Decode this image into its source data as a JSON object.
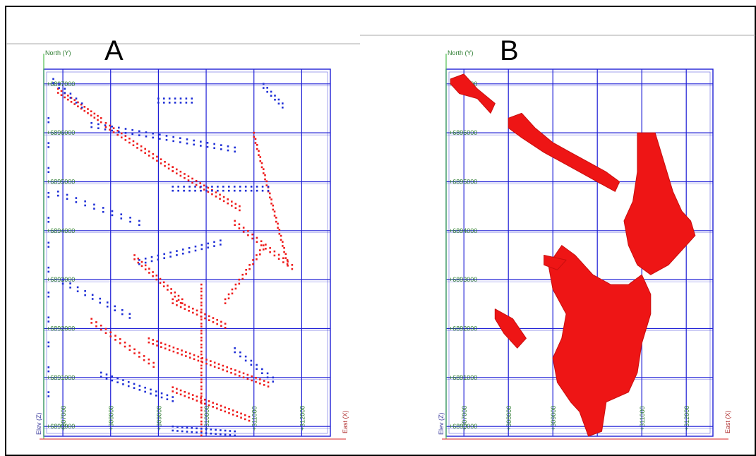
{
  "panels": {
    "a": {
      "letter": "A"
    },
    "b": {
      "letter": "B"
    }
  },
  "colors": {
    "grid": "#1f1fd6",
    "north_axis": "#4fbf4f",
    "east_axis": "#e05050",
    "tick_label": "#2e7d32",
    "red_points": "#ee1c1c",
    "blue_points": "#1f2fd6",
    "body_fill": "#ee1515"
  },
  "chart_data": [
    {
      "panel": "A",
      "type": "scatter",
      "xlabel": "East (X)",
      "ylabel": "North (Y)",
      "zlabel": "Elev (Z)",
      "x_ticks": [
        "+307000",
        "+308000",
        "+309000",
        "+310000",
        "+311000",
        "+312000"
      ],
      "y_ticks": [
        "+6897000",
        "+6896000",
        "+6895000",
        "+6894000",
        "+6893000",
        "+6892000",
        "+6891000",
        "+6890000"
      ],
      "xlim": [
        306600,
        312600
      ],
      "ylim": [
        6889800,
        6897300
      ],
      "grid": true,
      "series": [
        {
          "color": "red",
          "segments": [
            {
              "x1": 306900,
              "y1": 6896900,
              "x2": 307800,
              "y2": 6896300,
              "n": 14
            },
            {
              "x1": 307900,
              "y1": 6896200,
              "x2": 309300,
              "y2": 6895300,
              "n": 18
            },
            {
              "x1": 309300,
              "y1": 6895300,
              "x2": 310700,
              "y2": 6894500,
              "n": 18
            },
            {
              "x1": 311000,
              "y1": 6896000,
              "x2": 311700,
              "y2": 6893400,
              "n": 22
            },
            {
              "x1": 310600,
              "y1": 6894200,
              "x2": 311800,
              "y2": 6893300,
              "n": 14
            },
            {
              "x1": 308500,
              "y1": 6893500,
              "x2": 309500,
              "y2": 6892600,
              "n": 14
            },
            {
              "x1": 309300,
              "y1": 6892600,
              "x2": 310400,
              "y2": 6892100,
              "n": 14
            },
            {
              "x1": 310400,
              "y1": 6892600,
              "x2": 311200,
              "y2": 6893700,
              "n": 12
            },
            {
              "x1": 307600,
              "y1": 6892200,
              "x2": 308900,
              "y2": 6891300,
              "n": 14
            },
            {
              "x1": 308800,
              "y1": 6891800,
              "x2": 311300,
              "y2": 6890900,
              "n": 30
            },
            {
              "x1": 309300,
              "y1": 6890800,
              "x2": 310900,
              "y2": 6890200,
              "n": 20
            },
            {
              "x1": 309900,
              "y1": 6892900,
              "x2": 309900,
              "y2": 6889900,
              "n": 22
            }
          ]
        },
        {
          "color": "blue",
          "segments": [
            {
              "x1": 306800,
              "y1": 6897100,
              "x2": 307400,
              "y2": 6896600,
              "n": 6
            },
            {
              "x1": 309000,
              "y1": 6896700,
              "x2": 309700,
              "y2": 6896700,
              "n": 7
            },
            {
              "x1": 311200,
              "y1": 6897000,
              "x2": 311600,
              "y2": 6896600,
              "n": 6
            },
            {
              "x1": 307600,
              "y1": 6896200,
              "x2": 310600,
              "y2": 6895700,
              "n": 22
            },
            {
              "x1": 309300,
              "y1": 6894900,
              "x2": 311300,
              "y2": 6894900,
              "n": 18
            },
            {
              "x1": 306900,
              "y1": 6894800,
              "x2": 308600,
              "y2": 6894200,
              "n": 10
            },
            {
              "x1": 308600,
              "y1": 6893400,
              "x2": 310300,
              "y2": 6893800,
              "n": 14
            },
            {
              "x1": 307000,
              "y1": 6893000,
              "x2": 308400,
              "y2": 6892300,
              "n": 10
            },
            {
              "x1": 307800,
              "y1": 6891100,
              "x2": 309300,
              "y2": 6890600,
              "n": 14
            },
            {
              "x1": 309300,
              "y1": 6890000,
              "x2": 310600,
              "y2": 6889900,
              "n": 14
            },
            {
              "x1": 310600,
              "y1": 6891600,
              "x2": 311400,
              "y2": 6891000,
              "n": 8
            },
            {
              "x1": 306700,
              "y1": 6896300,
              "x2": 306700,
              "y2": 6890700,
              "n": 12
            }
          ]
        }
      ]
    },
    {
      "panel": "B",
      "type": "area",
      "xlabel": "East (X)",
      "ylabel": "North (Y)",
      "zlabel": "Elev (Z)",
      "x_ticks": [
        "+307000",
        "+308000",
        "+309000",
        "+310000",
        "+311000",
        "+312000"
      ],
      "y_ticks": [
        "+6897000",
        "+6896000",
        "+6895000",
        "+6894000",
        "+6893000",
        "+6892000",
        "+6891000",
        "+6890000"
      ],
      "xlim": [
        306600,
        312600
      ],
      "ylim": [
        6889800,
        6897300
      ],
      "grid": true,
      "series": [
        {
          "color": "red",
          "bodies": [
            [
              [
                306700,
                6897100
              ],
              [
                307000,
                6897200
              ],
              [
                307300,
                6896900
              ],
              [
                307700,
                6896600
              ],
              [
                307600,
                6896400
              ],
              [
                307300,
                6896700
              ],
              [
                306900,
                6896800
              ],
              [
                306700,
                6897000
              ]
            ],
            [
              [
                308000,
                6896300
              ],
              [
                308300,
                6896400
              ],
              [
                308600,
                6896100
              ],
              [
                309000,
                6895800
              ],
              [
                309400,
                6895600
              ],
              [
                309800,
                6895400
              ],
              [
                310200,
                6895200
              ],
              [
                310500,
                6895000
              ],
              [
                310400,
                6894800
              ],
              [
                310000,
                6895000
              ],
              [
                309600,
                6895200
              ],
              [
                309200,
                6895400
              ],
              [
                308800,
                6895600
              ],
              [
                308300,
                6895900
              ],
              [
                308000,
                6896100
              ]
            ],
            [
              [
                310900,
                6896000
              ],
              [
                311300,
                6896000
              ],
              [
                311500,
                6895400
              ],
              [
                311700,
                6894800
              ],
              [
                311900,
                6894400
              ],
              [
                312100,
                6894200
              ],
              [
                312200,
                6893900
              ],
              [
                311900,
                6893600
              ],
              [
                311600,
                6893300
              ],
              [
                311200,
                6893100
              ],
              [
                310900,
                6893300
              ],
              [
                310700,
                6893700
              ],
              [
                310600,
                6894200
              ],
              [
                310800,
                6894600
              ],
              [
                310900,
                6895200
              ]
            ],
            [
              [
                309200,
                6893700
              ],
              [
                309500,
                6893500
              ],
              [
                309900,
                6893100
              ],
              [
                310300,
                6892900
              ],
              [
                310700,
                6892900
              ],
              [
                311000,
                6893100
              ],
              [
                311200,
                6892700
              ],
              [
                311200,
                6892300
              ],
              [
                311000,
                6891700
              ],
              [
                310900,
                6891100
              ],
              [
                310700,
                6890700
              ],
              [
                310200,
                6890500
              ],
              [
                310100,
                6889900
              ],
              [
                309800,
                6889800
              ],
              [
                309600,
                6890300
              ],
              [
                309400,
                6890500
              ],
              [
                309100,
                6890900
              ],
              [
                309000,
                6891400
              ],
              [
                309200,
                6891800
              ],
              [
                309300,
                6892300
              ],
              [
                309000,
                6892800
              ],
              [
                308900,
                6893300
              ]
            ],
            [
              [
                307700,
                6892400
              ],
              [
                308100,
                6892200
              ],
              [
                308400,
                6891800
              ],
              [
                308200,
                6891600
              ],
              [
                307900,
                6891900
              ],
              [
                307700,
                6892200
              ]
            ],
            [
              [
                308800,
                6893500
              ],
              [
                309300,
                6893400
              ],
              [
                309100,
                6893200
              ],
              [
                308800,
                6893300
              ]
            ]
          ]
        }
      ]
    }
  ]
}
